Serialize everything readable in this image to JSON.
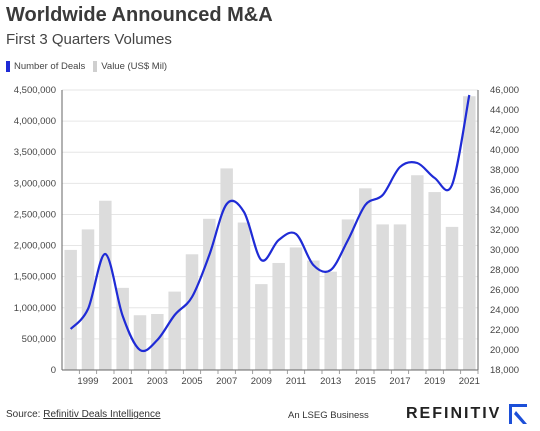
{
  "title": "Worldwide Announced M&A",
  "subtitle": "First 3 Quarters Volumes",
  "legend": {
    "deals_label": "Number of Deals",
    "value_label": "Value (US$ Mil)"
  },
  "colors": {
    "line": "#1f2bd6",
    "bar": "#dcdcdc",
    "axis": "#999999",
    "grid": "#e6e6e6"
  },
  "footer": {
    "source_prefix": "Source: ",
    "source_link": "Refinitiv Deals Intelligence",
    "business": "An LSEG Business",
    "logo": "REFINITIV"
  },
  "chart_data": {
    "type": "bar",
    "title": "Worldwide Announced M&A",
    "subtitle": "First 3 Quarters Volumes",
    "categories": [
      "1998",
      "1999",
      "2000",
      "2001",
      "2002",
      "2003",
      "2004",
      "2005",
      "2006",
      "2007",
      "2008",
      "2009",
      "2010",
      "2011",
      "2012",
      "2013",
      "2014",
      "2015",
      "2016",
      "2017",
      "2018",
      "2019",
      "2020",
      "2021"
    ],
    "x_tick_labels": [
      "1999",
      "2001",
      "2003",
      "2005",
      "2007",
      "2009",
      "2011",
      "2013",
      "2015",
      "2017",
      "2019",
      "2021"
    ],
    "series": [
      {
        "name": "Value (US$ Mil)",
        "type": "bar",
        "axis": "left",
        "values": [
          1930000,
          2260000,
          2720000,
          1320000,
          880000,
          900000,
          1260000,
          1860000,
          2430000,
          3240000,
          2370000,
          1380000,
          1720000,
          1970000,
          1760000,
          1580000,
          2420000,
          2920000,
          2340000,
          2340000,
          3130000,
          2860000,
          2300000,
          4400000
        ]
      },
      {
        "name": "Number of Deals",
        "type": "line",
        "axis": "right",
        "values": [
          22100,
          24100,
          29600,
          23400,
          20000,
          21000,
          23500,
          25300,
          29500,
          34600,
          33800,
          29000,
          31000,
          31600,
          28500,
          28000,
          31000,
          34500,
          35500,
          38300,
          38700,
          37200,
          36500,
          45500
        ]
      }
    ],
    "y_left": {
      "ylim": [
        0,
        4500000
      ],
      "ticks": [
        "0",
        "500,000",
        "1,000,000",
        "1,500,000",
        "2,000,000",
        "2,500,000",
        "3,000,000",
        "3,500,000",
        "4,000,000",
        "4,500,000"
      ]
    },
    "y_right": {
      "ylim": [
        18000,
        46000
      ],
      "ticks": [
        "18,000",
        "20,000",
        "22,000",
        "24,000",
        "26,000",
        "28,000",
        "30,000",
        "32,000",
        "34,000",
        "36,000",
        "38,000",
        "40,000",
        "42,000",
        "44,000",
        "46,000"
      ]
    },
    "grid": true,
    "legend_position": "top-left"
  }
}
